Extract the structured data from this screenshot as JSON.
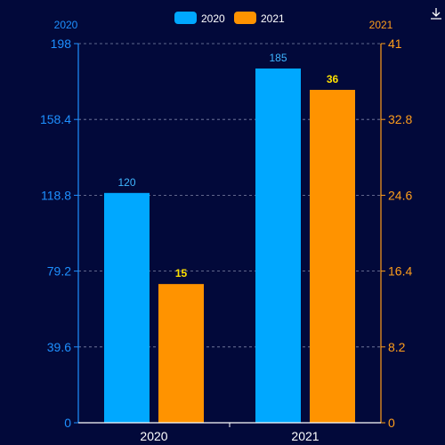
{
  "chart_data": {
    "type": "bar",
    "categories": [
      "2020",
      "2021"
    ],
    "series": [
      {
        "name": "2020",
        "axis": "left",
        "color": "#00a8ff",
        "label_color": "#3fb6ff",
        "values": [
          120,
          185
        ],
        "value_labels": [
          "120",
          "185"
        ]
      },
      {
        "name": "2021",
        "axis": "right",
        "color": "#ff9300",
        "label_color": "#ffe100",
        "values": [
          15,
          36
        ],
        "value_labels": [
          "15",
          "36"
        ]
      }
    ],
    "y_left": {
      "name": "2020",
      "range": [
        0,
        198
      ],
      "ticks": [
        "0",
        "39.6",
        "79.2",
        "118.8",
        "158.4",
        "198"
      ],
      "color": "#1e90ff"
    },
    "y_right": {
      "name": "2021",
      "range": [
        0,
        41
      ],
      "ticks": [
        "0",
        "8.2",
        "16.4",
        "24.6",
        "32.8",
        "41"
      ],
      "color": "#ff9e1b"
    },
    "legend": {
      "placement": "top-center",
      "items": [
        "2020",
        "2021"
      ]
    },
    "grid": true
  },
  "toolbar": {
    "download_icon": "download-icon"
  }
}
